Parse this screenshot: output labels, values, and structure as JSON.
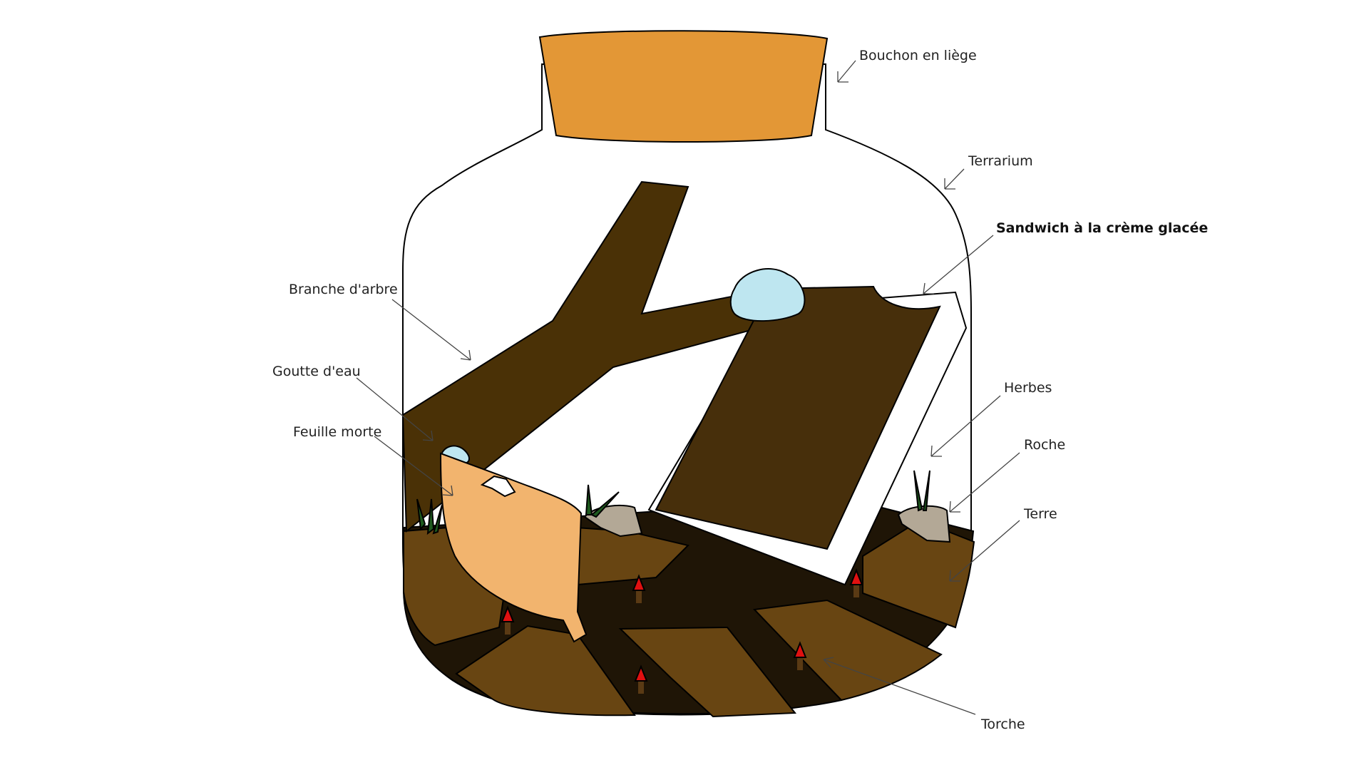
{
  "colors": {
    "cork": "#E39736",
    "branch": "#4A3106",
    "sandwich_cookie": "#472F0B",
    "sandwich_cream": "#FFFFFF",
    "water": "#BEE6F0",
    "leaf": "#F2B46E",
    "soil_dark": "#1F1506",
    "soil_light": "#684512",
    "rock": "#B3A896",
    "grass": "#1E5A1E",
    "torch_flame": "#E01010",
    "torch_stick": "#5A3A14"
  },
  "labels": {
    "cork": "Bouchon en liège",
    "terrarium": "Terrarium",
    "sandwich": "Sandwich à la crème glacée",
    "branch": "Branche d'arbre",
    "water": "Goutte d'eau",
    "leaf": "Feuille morte",
    "grass": "Herbes",
    "rock": "Roche",
    "soil": "Terre",
    "torch": "Torche"
  }
}
